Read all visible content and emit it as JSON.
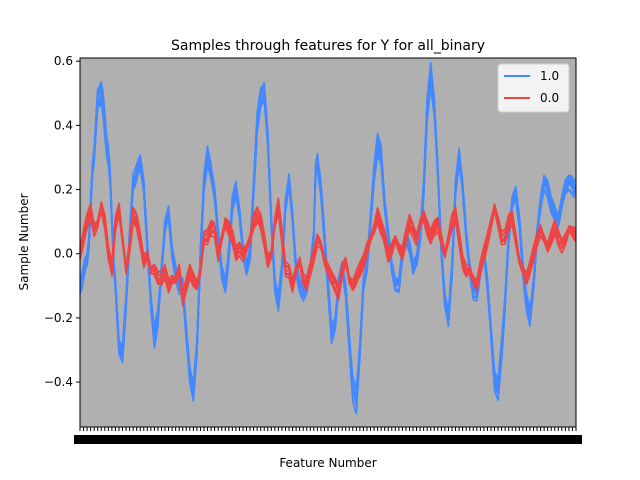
{
  "chart_data": {
    "type": "line",
    "title": "Samples through features for Y for all_binary",
    "xlabel": "Feature Number",
    "ylabel": "Sample Number",
    "ylim": [
      -0.54,
      0.61
    ],
    "yticks": [
      -0.4,
      -0.2,
      0.0,
      0.2,
      0.4,
      0.6
    ],
    "ytick_labels": [
      "−0.4",
      "−0.2",
      "0.0",
      "0.2",
      "0.4",
      "0.6"
    ],
    "xrange": [
      0,
      140
    ],
    "x_tick_count": 140,
    "background_color": "#b0b0b0",
    "legend": {
      "position": "top-right"
    },
    "series": [
      {
        "name": "1.0",
        "color": "#4488ff",
        "band_width": 0.03,
        "samples": 15,
        "anchors": [
          [
            0,
            -0.1
          ],
          [
            2,
            -0.02
          ],
          [
            4,
            0.3
          ],
          [
            5,
            0.48
          ],
          [
            6,
            0.5
          ],
          [
            8,
            0.3
          ],
          [
            10,
            -0.1
          ],
          [
            11,
            -0.3
          ],
          [
            12,
            -0.32
          ],
          [
            13,
            -0.15
          ],
          [
            14,
            0.05
          ],
          [
            15,
            0.22
          ],
          [
            17,
            0.28
          ],
          [
            18,
            0.2
          ],
          [
            19,
            0.02
          ],
          [
            20,
            -0.15
          ],
          [
            21,
            -0.26
          ],
          [
            22,
            -0.2
          ],
          [
            23,
            -0.05
          ],
          [
            24,
            0.08
          ],
          [
            25,
            0.12
          ],
          [
            26,
            0.0
          ],
          [
            27,
            -0.06
          ],
          [
            28,
            -0.1
          ],
          [
            29,
            -0.1
          ],
          [
            30,
            -0.25
          ],
          [
            31,
            -0.38
          ],
          [
            32,
            -0.44
          ],
          [
            33,
            -0.3
          ],
          [
            34,
            0.0
          ],
          [
            35,
            0.22
          ],
          [
            36,
            0.3
          ],
          [
            37,
            0.25
          ],
          [
            38,
            0.18
          ],
          [
            39,
            0.05
          ],
          [
            40,
            -0.06
          ],
          [
            41,
            -0.1
          ],
          [
            41.5,
            -0.06
          ],
          [
            42,
            0.0
          ],
          [
            43,
            0.15
          ],
          [
            44,
            0.2
          ],
          [
            45,
            0.12
          ],
          [
            46,
            0.0
          ],
          [
            47,
            -0.05
          ],
          [
            48,
            0.0
          ],
          [
            49,
            0.2
          ],
          [
            50,
            0.4
          ],
          [
            51,
            0.48
          ],
          [
            52,
            0.5
          ],
          [
            53,
            0.35
          ],
          [
            54,
            0.1
          ],
          [
            55,
            -0.1
          ],
          [
            56,
            -0.15
          ],
          [
            57,
            -0.05
          ],
          [
            58,
            0.15
          ],
          [
            59,
            0.22
          ],
          [
            60,
            0.1
          ],
          [
            61,
            -0.05
          ],
          [
            62,
            -0.1
          ],
          [
            63,
            -0.12
          ],
          [
            64,
            -0.1
          ],
          [
            65,
            -0.05
          ],
          [
            66,
            0.05
          ],
          [
            66.5,
            0.25
          ],
          [
            67,
            0.28
          ],
          [
            68,
            0.2
          ],
          [
            69,
            0.05
          ],
          [
            70,
            -0.1
          ],
          [
            71,
            -0.25
          ],
          [
            72,
            -0.22
          ],
          [
            73,
            -0.1
          ],
          [
            74,
            -0.05
          ],
          [
            75,
            -0.12
          ],
          [
            76,
            -0.28
          ],
          [
            77,
            -0.42
          ],
          [
            78,
            -0.46
          ],
          [
            79,
            -0.3
          ],
          [
            80,
            -0.1
          ],
          [
            81,
            -0.05
          ],
          [
            82,
            0.1
          ],
          [
            83,
            0.25
          ],
          [
            84,
            0.34
          ],
          [
            85,
            0.3
          ],
          [
            86,
            0.15
          ],
          [
            87,
            0.05
          ],
          [
            88,
            -0.05
          ],
          [
            89,
            -0.1
          ],
          [
            90,
            -0.1
          ],
          [
            91,
            0.0
          ],
          [
            92,
            0.05
          ],
          [
            93,
            0.02
          ],
          [
            94,
            -0.05
          ],
          [
            95,
            -0.03
          ],
          [
            96,
            0.05
          ],
          [
            97,
            0.2
          ],
          [
            98,
            0.45
          ],
          [
            99,
            0.55
          ],
          [
            100,
            0.45
          ],
          [
            101,
            0.25
          ],
          [
            102,
            0.0
          ],
          [
            103,
            -0.15
          ],
          [
            104,
            -0.2
          ],
          [
            105,
            -0.05
          ],
          [
            106,
            0.2
          ],
          [
            107,
            0.3
          ],
          [
            108,
            0.2
          ],
          [
            109,
            0.05
          ],
          [
            110,
            -0.05
          ],
          [
            111,
            -0.12
          ],
          [
            112,
            -0.12
          ],
          [
            113,
            -0.05
          ],
          [
            114,
            0.0
          ],
          [
            115,
            -0.1
          ],
          [
            116,
            -0.25
          ],
          [
            117,
            -0.4
          ],
          [
            118,
            -0.42
          ],
          [
            119,
            -0.3
          ],
          [
            120,
            -0.15
          ],
          [
            121,
            0.05
          ],
          [
            122,
            0.15
          ],
          [
            123,
            0.18
          ],
          [
            124,
            0.1
          ],
          [
            125,
            -0.05
          ],
          [
            126,
            -0.15
          ],
          [
            127,
            -0.2
          ],
          [
            128,
            -0.1
          ],
          [
            129,
            0.05
          ],
          [
            130,
            0.15
          ],
          [
            131,
            0.22
          ],
          [
            132,
            0.2
          ],
          [
            133,
            0.15
          ],
          [
            134,
            0.12
          ],
          [
            135,
            0.1
          ],
          [
            136,
            0.15
          ],
          [
            137,
            0.2
          ],
          [
            138,
            0.22
          ],
          [
            140,
            0.2
          ]
        ]
      },
      {
        "name": "0.0",
        "color": "#ee4444",
        "band_width": 0.03,
        "samples": 10,
        "anchors": [
          [
            0,
            0.0
          ],
          [
            1,
            0.05
          ],
          [
            2,
            0.1
          ],
          [
            3,
            0.14
          ],
          [
            4,
            0.08
          ],
          [
            5,
            0.1
          ],
          [
            6,
            0.15
          ],
          [
            7,
            0.1
          ],
          [
            8,
            0.0
          ],
          [
            9,
            -0.05
          ],
          [
            10,
            0.1
          ],
          [
            11,
            0.15
          ],
          [
            12,
            0.05
          ],
          [
            13,
            -0.05
          ],
          [
            14,
            0.02
          ],
          [
            15,
            0.12
          ],
          [
            16,
            0.1
          ],
          [
            17,
            0.05
          ],
          [
            18,
            -0.02
          ],
          [
            19,
            0.0
          ],
          [
            20,
            -0.05
          ],
          [
            21,
            -0.05
          ],
          [
            22,
            -0.08
          ],
          [
            23,
            -0.08
          ],
          [
            24,
            -0.05
          ],
          [
            25,
            -0.1
          ],
          [
            26,
            -0.08
          ],
          [
            27,
            -0.08
          ],
          [
            28,
            -0.05
          ],
          [
            29,
            -0.15
          ],
          [
            30,
            -0.1
          ],
          [
            31,
            -0.05
          ],
          [
            32,
            -0.08
          ],
          [
            33,
            -0.1
          ],
          [
            34,
            -0.05
          ],
          [
            35,
            0.05
          ],
          [
            36,
            0.05
          ],
          [
            37,
            0.08
          ],
          [
            38,
            0.08
          ],
          [
            39,
            0.0
          ],
          [
            40,
            0.05
          ],
          [
            41,
            0.1
          ],
          [
            42,
            0.08
          ],
          [
            43,
            0.05
          ],
          [
            44,
            0.0
          ],
          [
            45,
            0.02
          ],
          [
            46,
            0.0
          ],
          [
            47,
            0.02
          ],
          [
            48,
            0.05
          ],
          [
            49,
            0.1
          ],
          [
            50,
            0.12
          ],
          [
            51,
            0.1
          ],
          [
            52,
            0.05
          ],
          [
            53,
            -0.02
          ],
          [
            54,
            0.0
          ],
          [
            55,
            0.1
          ],
          [
            56,
            0.15
          ],
          [
            57,
            0.05
          ],
          [
            58,
            -0.05
          ],
          [
            59,
            -0.05
          ],
          [
            60,
            -0.1
          ],
          [
            61,
            -0.05
          ],
          [
            62,
            -0.02
          ],
          [
            63,
            -0.08
          ],
          [
            64,
            -0.1
          ],
          [
            65,
            -0.05
          ],
          [
            66,
            0.0
          ],
          [
            67,
            0.05
          ],
          [
            68,
            0.03
          ],
          [
            69,
            -0.02
          ],
          [
            70,
            -0.05
          ],
          [
            71,
            -0.08
          ],
          [
            72,
            -0.1
          ],
          [
            73,
            -0.12
          ],
          [
            74,
            -0.05
          ],
          [
            75,
            -0.02
          ],
          [
            76,
            -0.08
          ],
          [
            77,
            -0.1
          ],
          [
            78,
            -0.08
          ],
          [
            79,
            -0.05
          ],
          [
            80,
            -0.02
          ],
          [
            81,
            0.02
          ],
          [
            82,
            0.05
          ],
          [
            83,
            0.08
          ],
          [
            84,
            0.12
          ],
          [
            85,
            0.08
          ],
          [
            86,
            0.05
          ],
          [
            87,
            0.0
          ],
          [
            88,
            0.02
          ],
          [
            89,
            0.05
          ],
          [
            90,
            0.02
          ],
          [
            91,
            0.0
          ],
          [
            92,
            0.05
          ],
          [
            93,
            0.1
          ],
          [
            94,
            0.08
          ],
          [
            95,
            0.05
          ],
          [
            96,
            0.1
          ],
          [
            97,
            0.12
          ],
          [
            98,
            0.08
          ],
          [
            99,
            0.05
          ],
          [
            100,
            0.08
          ],
          [
            101,
            0.1
          ],
          [
            102,
            0.05
          ],
          [
            103,
            0.0
          ],
          [
            104,
            0.05
          ],
          [
            105,
            0.1
          ],
          [
            106,
            0.12
          ],
          [
            107,
            0.05
          ],
          [
            108,
            -0.02
          ],
          [
            109,
            -0.05
          ],
          [
            110,
            -0.05
          ],
          [
            111,
            -0.08
          ],
          [
            112,
            -0.1
          ],
          [
            113,
            -0.05
          ],
          [
            114,
            0.0
          ],
          [
            115,
            0.05
          ],
          [
            116,
            0.1
          ],
          [
            117,
            0.15
          ],
          [
            118,
            0.1
          ],
          [
            119,
            0.05
          ],
          [
            120,
            0.05
          ],
          [
            121,
            0.1
          ],
          [
            122,
            0.12
          ],
          [
            123,
            0.05
          ],
          [
            124,
            -0.02
          ],
          [
            125,
            -0.05
          ],
          [
            126,
            -0.08
          ],
          [
            127,
            -0.05
          ],
          [
            128,
            0.0
          ],
          [
            129,
            0.05
          ],
          [
            130,
            0.08
          ],
          [
            131,
            0.05
          ],
          [
            132,
            0.02
          ],
          [
            133,
            0.05
          ],
          [
            134,
            0.08
          ],
          [
            135,
            0.05
          ],
          [
            136,
            0.03
          ],
          [
            137,
            0.05
          ],
          [
            138,
            0.08
          ],
          [
            140,
            0.06
          ]
        ]
      }
    ]
  }
}
